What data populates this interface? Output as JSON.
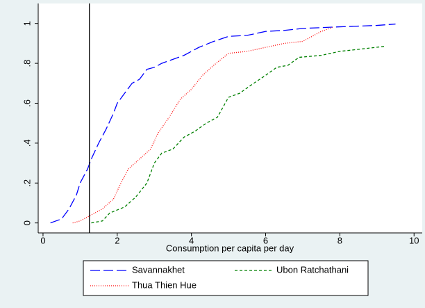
{
  "chart_data": {
    "type": "line",
    "xlabel": "Consumption per capita per day",
    "xlim": [
      -0.13,
      10.22
    ],
    "ylim": [
      -0.05,
      1.1
    ],
    "xticks": [
      0,
      2,
      4,
      6,
      8,
      10
    ],
    "yticks": [
      0,
      {
        "value": 0.2,
        "label": ".2"
      },
      {
        "value": 0.4,
        "label": ".4"
      },
      {
        "value": 0.6,
        "label": ".6"
      },
      {
        "value": 0.8,
        "label": ".8"
      },
      1
    ],
    "xline": 1.25,
    "grid": false,
    "legend": "bottom",
    "series": [
      {
        "name": "Savannakhet",
        "color": "#0000ff",
        "dash": "long",
        "x": [
          0.2,
          0.5,
          0.7,
          0.9,
          1.0,
          1.2,
          1.3,
          1.5,
          1.7,
          1.9,
          2.0,
          2.2,
          2.4,
          2.6,
          2.8,
          3.0,
          3.2,
          3.5,
          3.8,
          4.2,
          4.6,
          5.0,
          5.5,
          6.0,
          6.5,
          7.0,
          8.0,
          9.0,
          9.5
        ],
        "values": [
          0,
          0.02,
          0.07,
          0.14,
          0.2,
          0.27,
          0.32,
          0.4,
          0.47,
          0.55,
          0.6,
          0.65,
          0.7,
          0.72,
          0.77,
          0.78,
          0.8,
          0.82,
          0.84,
          0.88,
          0.91,
          0.935,
          0.94,
          0.96,
          0.965,
          0.975,
          0.983,
          0.99,
          0.997
        ]
      },
      {
        "name": "Ubon Ratchathani",
        "color": "#008000",
        "dash": "short",
        "x": [
          1.3,
          1.6,
          1.8,
          2.2,
          2.5,
          2.8,
          3.0,
          3.2,
          3.5,
          3.8,
          4.1,
          4.4,
          4.7,
          5.0,
          5.3,
          5.6,
          6.0,
          6.3,
          6.6,
          6.9,
          7.5,
          8.0,
          8.5,
          9.2
        ],
        "values": [
          0,
          0.01,
          0.05,
          0.08,
          0.13,
          0.2,
          0.3,
          0.35,
          0.37,
          0.43,
          0.46,
          0.5,
          0.53,
          0.63,
          0.65,
          0.69,
          0.74,
          0.78,
          0.79,
          0.83,
          0.84,
          0.86,
          0.87,
          0.885
        ]
      },
      {
        "name": "Thua Thien Hue",
        "color": "#ff0000",
        "dash": "dot",
        "x": [
          0.8,
          1.0,
          1.3,
          1.6,
          1.9,
          2.1,
          2.3,
          2.6,
          2.9,
          3.1,
          3.4,
          3.7,
          4.0,
          4.3,
          4.6,
          5.0,
          5.5,
          6.0,
          6.5,
          7.0,
          7.5,
          7.8
        ],
        "values": [
          0,
          0.01,
          0.04,
          0.07,
          0.12,
          0.2,
          0.27,
          0.32,
          0.37,
          0.45,
          0.53,
          0.62,
          0.67,
          0.74,
          0.79,
          0.85,
          0.86,
          0.88,
          0.9,
          0.91,
          0.96,
          0.98
        ]
      }
    ]
  }
}
